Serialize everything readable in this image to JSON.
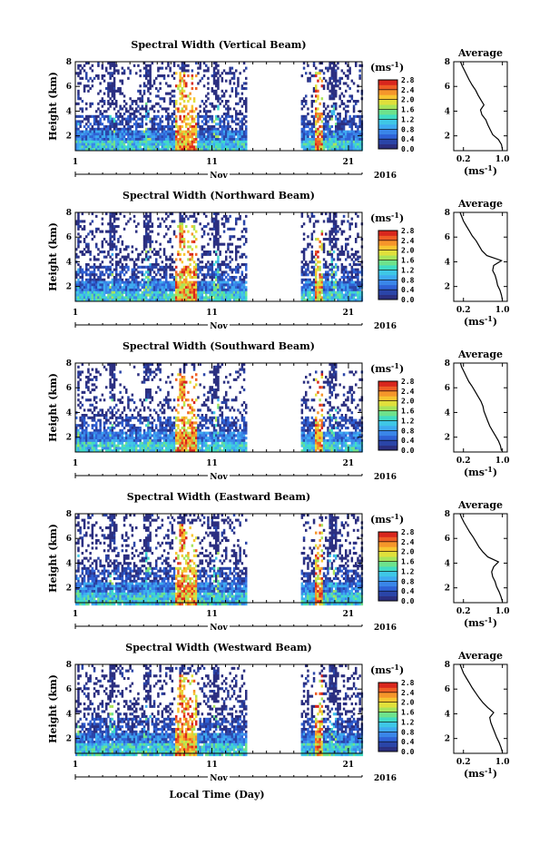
{
  "chart_data": {
    "type": "heatmap",
    "x_axis_title": "Local Time (Day)",
    "month_label": "Nov",
    "year_label": "2016",
    "day_ticks": [
      "1",
      "11",
      "21"
    ],
    "height_ticks": [
      "2",
      "4",
      "6",
      "8"
    ],
    "ylabel": "Height (km)",
    "height_range_km": [
      0.8,
      8.0
    ],
    "day_range": [
      1,
      22
    ],
    "data_gap_days": [
      13.5,
      17.5
    ],
    "colorbar": {
      "unit_label": "(ms",
      "unit_exp": "-1",
      "unit_close": ")",
      "range": [
        0.0,
        2.8
      ],
      "colors": [
        "#2b2f80",
        "#2a45a8",
        "#2f62d6",
        "#3a86e8",
        "#3eaaf0",
        "#3fc7e6",
        "#40dcc4",
        "#6ee28c",
        "#a8e45a",
        "#e0e03c",
        "#f7c531",
        "#f5962b",
        "#ee5d25",
        "#d8261d"
      ]
    },
    "panels": [
      {
        "title": "Spectral Width (Vertical Beam)",
        "colorbar_ticks": [
          "0.0",
          "0.4",
          "0.8",
          "1.2",
          "1.6",
          "2.0",
          "2.4",
          "2.8"
        ],
        "average": {
          "title": "Average",
          "xlabel": "(ms",
          "xlabel_exp": "-1",
          "xlabel_close": ")",
          "xticks": [
            "0.2",
            "1.0"
          ],
          "height_km": [
            0.9,
            1.3,
            1.7,
            2.1,
            2.5,
            2.9,
            3.3,
            3.7,
            4.1,
            4.5,
            4.9,
            5.3,
            5.7,
            6.1,
            6.5,
            6.9,
            7.3,
            7.7,
            8.0
          ],
          "width_ms": [
            1.0,
            0.98,
            0.92,
            0.8,
            0.75,
            0.7,
            0.66,
            0.58,
            0.55,
            0.62,
            0.56,
            0.5,
            0.45,
            0.38,
            0.32,
            0.27,
            0.22,
            0.17,
            0.14
          ]
        }
      },
      {
        "title": "Spectral Width (Northward Beam)",
        "colorbar_ticks": [
          "0.0",
          "0.4",
          "0.8",
          "1.2",
          "1.6",
          "2.0",
          "2.4",
          "2.8"
        ],
        "average": {
          "title": "Average",
          "xlabel": "(ms",
          "xlabel_exp": "-1",
          "xlabel_close": ")",
          "xticks": [
            "0.2",
            "1.0"
          ],
          "height_km": [
            0.9,
            1.3,
            1.7,
            2.1,
            2.5,
            2.9,
            3.3,
            3.7,
            4.1,
            4.5,
            4.9,
            5.3,
            5.7,
            6.1,
            6.5,
            6.9,
            7.3,
            7.7,
            8.0
          ],
          "width_ms": [
            1.0,
            0.98,
            0.95,
            0.9,
            0.88,
            0.85,
            0.8,
            0.82,
            0.98,
            0.68,
            0.58,
            0.52,
            0.46,
            0.38,
            0.32,
            0.26,
            0.2,
            0.16,
            0.13
          ]
        }
      },
      {
        "title": "Spectral Width (Southward Beam)",
        "colorbar_ticks": [
          "0.0",
          "0.4",
          "0.8",
          "1.2",
          "1.6",
          "2.0",
          "2.4",
          "2.8"
        ],
        "average": {
          "title": "Average",
          "xlabel": "(ms",
          "xlabel_exp": "-1",
          "xlabel_close": ")",
          "xticks": [
            "0.2",
            "1.0"
          ],
          "height_km": [
            0.9,
            1.3,
            1.7,
            2.1,
            2.5,
            2.9,
            3.3,
            3.7,
            4.1,
            4.5,
            4.9,
            5.3,
            5.7,
            6.1,
            6.5,
            6.9,
            7.3,
            7.7,
            8.0
          ],
          "width_ms": [
            0.98,
            0.96,
            0.92,
            0.86,
            0.8,
            0.74,
            0.7,
            0.66,
            0.62,
            0.6,
            0.56,
            0.5,
            0.44,
            0.38,
            0.31,
            0.26,
            0.21,
            0.16,
            0.14
          ]
        }
      },
      {
        "title": "Spectral Width (Eastward Beam)",
        "colorbar_ticks": [
          "0.0",
          "0.4",
          "0.8",
          "1.2",
          "1.6",
          "2.0",
          "2.4",
          "2.8"
        ],
        "average": {
          "title": "Average",
          "xlabel": "(ms",
          "xlabel_exp": "-1",
          "xlabel_close": ")",
          "xticks": [
            "0.2",
            "1.0"
          ],
          "height_km": [
            0.9,
            1.3,
            1.7,
            2.1,
            2.5,
            2.9,
            3.3,
            3.7,
            4.1,
            4.5,
            4.9,
            5.3,
            5.7,
            6.1,
            6.5,
            6.9,
            7.3,
            7.7,
            8.0
          ],
          "width_ms": [
            1.0,
            0.97,
            0.93,
            0.88,
            0.85,
            0.8,
            0.78,
            0.82,
            0.92,
            0.7,
            0.6,
            0.52,
            0.46,
            0.4,
            0.33,
            0.27,
            0.21,
            0.16,
            0.13
          ]
        }
      },
      {
        "title": "Spectral Width (Westward Beam)",
        "colorbar_ticks": [
          "0.0",
          "0.4",
          "0.8",
          "1.2",
          "1.6",
          "2.0",
          "2.4",
          "2.8"
        ],
        "average": {
          "title": "Average",
          "xlabel": "(ms",
          "xlabel_exp": "-1",
          "xlabel_close": ")",
          "xticks": [
            "0.2",
            "1.0"
          ],
          "height_km": [
            0.9,
            1.3,
            1.7,
            2.1,
            2.5,
            2.9,
            3.3,
            3.7,
            4.1,
            4.5,
            4.9,
            5.3,
            5.7,
            6.1,
            6.5,
            6.9,
            7.3,
            7.7,
            8.0
          ],
          "width_ms": [
            1.0,
            0.97,
            0.93,
            0.88,
            0.84,
            0.8,
            0.76,
            0.74,
            0.82,
            0.7,
            0.6,
            0.52,
            0.45,
            0.38,
            0.32,
            0.26,
            0.2,
            0.16,
            0.13
          ]
        }
      }
    ]
  }
}
